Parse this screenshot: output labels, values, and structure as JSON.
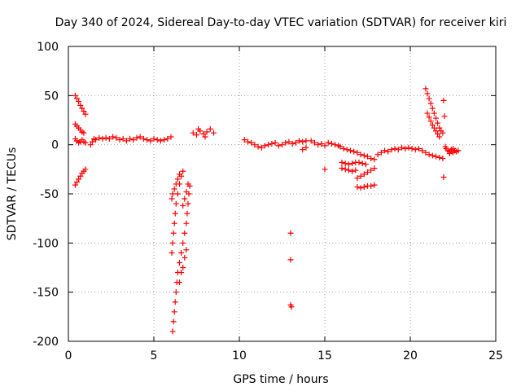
{
  "chart_data": {
    "type": "scatter",
    "title": "Day 340 of 2024, Sidereal Day-to-day VTEC variation (SDTVAR) for receiver kiri",
    "xlabel": "GPS time / hours",
    "ylabel": "SDTVAR / TECUs",
    "xlim": [
      0,
      25
    ],
    "ylim": [
      -200,
      100
    ],
    "xticks": [
      0,
      5,
      10,
      15,
      20,
      25
    ],
    "yticks": [
      -200,
      -150,
      -100,
      -50,
      0,
      50,
      100
    ],
    "grid": true,
    "marker": "+",
    "color": "#ff0000",
    "series": [
      {
        "points": [
          [
            0.4,
            50
          ],
          [
            0.5,
            47
          ],
          [
            0.6,
            44
          ],
          [
            0.7,
            40
          ],
          [
            0.8,
            37
          ],
          [
            0.9,
            34
          ],
          [
            1.0,
            31
          ],
          [
            0.4,
            21
          ],
          [
            0.5,
            19
          ],
          [
            0.6,
            17
          ],
          [
            0.7,
            15
          ],
          [
            0.8,
            13
          ],
          [
            0.9,
            12
          ],
          [
            0.4,
            6
          ],
          [
            0.5,
            4
          ],
          [
            0.6,
            2
          ],
          [
            0.7,
            3
          ],
          [
            0.8,
            5
          ],
          [
            0.9,
            3
          ],
          [
            1.0,
            2
          ],
          [
            0.4,
            -41
          ],
          [
            0.5,
            -38
          ],
          [
            0.6,
            -35
          ],
          [
            0.7,
            -32
          ],
          [
            0.8,
            -29
          ],
          [
            0.9,
            -27
          ],
          [
            1.0,
            -25
          ],
          [
            1.3,
            0
          ],
          [
            1.4,
            3
          ],
          [
            1.5,
            6
          ],
          [
            1.6,
            5
          ],
          [
            1.8,
            7
          ],
          [
            2.0,
            6
          ],
          [
            2.2,
            7
          ],
          [
            2.4,
            6
          ],
          [
            2.6,
            8
          ],
          [
            2.8,
            7
          ],
          [
            3.0,
            5
          ],
          [
            3.2,
            6
          ],
          [
            3.4,
            4
          ],
          [
            3.6,
            6
          ],
          [
            3.8,
            5
          ],
          [
            4.0,
            7
          ],
          [
            4.2,
            8
          ],
          [
            4.4,
            6
          ],
          [
            4.6,
            5
          ],
          [
            4.8,
            4
          ],
          [
            5.0,
            6
          ],
          [
            5.2,
            5
          ],
          [
            5.4,
            4
          ],
          [
            5.6,
            5
          ],
          [
            5.8,
            6
          ],
          [
            6.0,
            8
          ],
          [
            6.05,
            -110
          ],
          [
            6.1,
            -100
          ],
          [
            6.15,
            -90
          ],
          [
            6.2,
            -80
          ],
          [
            6.25,
            -70
          ],
          [
            6.3,
            -60
          ],
          [
            6.4,
            -50
          ],
          [
            6.5,
            -40
          ],
          [
            6.6,
            -32
          ],
          [
            6.7,
            -27
          ],
          [
            6.05,
            -55
          ],
          [
            6.1,
            -50
          ],
          [
            6.2,
            -45
          ],
          [
            6.3,
            -40
          ],
          [
            6.4,
            -35
          ],
          [
            6.5,
            -30
          ],
          [
            6.1,
            -190
          ],
          [
            6.15,
            -180
          ],
          [
            6.2,
            -170
          ],
          [
            6.25,
            -160
          ],
          [
            6.3,
            -150
          ],
          [
            6.35,
            -140
          ],
          [
            6.4,
            -130
          ],
          [
            6.5,
            -120
          ],
          [
            6.6,
            -110
          ],
          [
            6.7,
            -100
          ],
          [
            6.8,
            -90
          ],
          [
            6.9,
            -80
          ],
          [
            6.95,
            -70
          ],
          [
            7.0,
            -60
          ],
          [
            7.05,
            -50
          ],
          [
            7.1,
            -42
          ],
          [
            7.0,
            -40
          ],
          [
            6.7,
            -62
          ],
          [
            6.8,
            -55
          ],
          [
            6.9,
            -48
          ],
          [
            6.5,
            -140
          ],
          [
            6.6,
            -130
          ],
          [
            6.7,
            -125
          ],
          [
            6.8,
            -115
          ],
          [
            6.9,
            -107
          ],
          [
            7.3,
            12
          ],
          [
            7.5,
            10
          ],
          [
            7.7,
            14
          ],
          [
            7.9,
            11
          ],
          [
            8.1,
            13
          ],
          [
            8.3,
            16
          ],
          [
            8.5,
            12
          ],
          [
            7.6,
            16
          ],
          [
            8.0,
            8
          ],
          [
            10.3,
            5
          ],
          [
            10.5,
            3
          ],
          [
            10.7,
            2
          ],
          [
            10.9,
            0
          ],
          [
            11.1,
            -2
          ],
          [
            11.3,
            -3
          ],
          [
            11.5,
            -1
          ],
          [
            11.7,
            0
          ],
          [
            11.9,
            1
          ],
          [
            12.1,
            2
          ],
          [
            12.3,
            -1
          ],
          [
            12.5,
            0
          ],
          [
            12.7,
            2
          ],
          [
            12.9,
            3
          ],
          [
            13.1,
            1
          ],
          [
            13.3,
            2
          ],
          [
            13.5,
            4
          ],
          [
            13.7,
            3
          ],
          [
            13.9,
            4
          ],
          [
            13.7,
            -5
          ],
          [
            13.9,
            -3
          ],
          [
            13.0,
            -90
          ],
          [
            13.0,
            -117
          ],
          [
            13.0,
            -163
          ],
          [
            13.05,
            -165
          ],
          [
            14.2,
            4
          ],
          [
            14.4,
            2
          ],
          [
            14.6,
            0
          ],
          [
            14.8,
            1
          ],
          [
            15.0,
            -1
          ],
          [
            15.2,
            2
          ],
          [
            15.4,
            1
          ],
          [
            15.6,
            0
          ],
          [
            15.8,
            -1
          ],
          [
            15.0,
            -25
          ],
          [
            15.9,
            -2
          ],
          [
            16.1,
            -4
          ],
          [
            16.3,
            -5
          ],
          [
            16.5,
            -6
          ],
          [
            16.7,
            -7
          ],
          [
            16.9,
            -8
          ],
          [
            17.1,
            -10
          ],
          [
            17.3,
            -11
          ],
          [
            17.5,
            -12
          ],
          [
            17.7,
            -14
          ],
          [
            17.9,
            -15
          ],
          [
            16.0,
            -18
          ],
          [
            16.2,
            -19
          ],
          [
            16.4,
            -20
          ],
          [
            16.6,
            -19
          ],
          [
            16.8,
            -18
          ],
          [
            17.0,
            -18
          ],
          [
            17.2,
            -19
          ],
          [
            17.4,
            -20
          ],
          [
            16.0,
            -24
          ],
          [
            16.2,
            -25
          ],
          [
            16.4,
            -26
          ],
          [
            16.6,
            -27
          ],
          [
            16.8,
            -26
          ],
          [
            16.9,
            -34
          ],
          [
            17.1,
            -32
          ],
          [
            17.3,
            -30
          ],
          [
            17.5,
            -28
          ],
          [
            17.7,
            -26
          ],
          [
            17.9,
            -24
          ],
          [
            16.9,
            -43
          ],
          [
            17.1,
            -44
          ],
          [
            17.3,
            -43
          ],
          [
            17.5,
            -42
          ],
          [
            17.7,
            -42
          ],
          [
            17.9,
            -41
          ],
          [
            18.1,
            -10
          ],
          [
            18.3,
            -8
          ],
          [
            18.5,
            -6
          ],
          [
            18.7,
            -7
          ],
          [
            18.9,
            -5
          ],
          [
            19.1,
            -4
          ],
          [
            19.3,
            -5
          ],
          [
            19.5,
            -3
          ],
          [
            19.7,
            -4
          ],
          [
            19.9,
            -3
          ],
          [
            20.1,
            -4
          ],
          [
            20.3,
            -5
          ],
          [
            20.5,
            -4
          ],
          [
            20.7,
            -6
          ],
          [
            20.9,
            -8
          ],
          [
            21.1,
            -10
          ],
          [
            21.3,
            -11
          ],
          [
            21.5,
            -12
          ],
          [
            21.7,
            -13
          ],
          [
            21.9,
            -14
          ],
          [
            20.9,
            57
          ],
          [
            21.0,
            52
          ],
          [
            21.1,
            47
          ],
          [
            21.2,
            42
          ],
          [
            21.3,
            37
          ],
          [
            21.4,
            32
          ],
          [
            21.5,
            27
          ],
          [
            21.6,
            22
          ],
          [
            21.7,
            17
          ],
          [
            21.8,
            14
          ],
          [
            21.9,
            12
          ],
          [
            21.0,
            32
          ],
          [
            21.1,
            28
          ],
          [
            21.2,
            24
          ],
          [
            21.3,
            20
          ],
          [
            21.4,
            17
          ],
          [
            21.5,
            14
          ],
          [
            21.6,
            11
          ],
          [
            21.7,
            8
          ],
          [
            21.95,
            45
          ],
          [
            22.0,
            29
          ],
          [
            21.95,
            -33
          ],
          [
            22.05,
            -2
          ],
          [
            22.1,
            -4
          ],
          [
            22.2,
            -6
          ],
          [
            22.3,
            -7
          ],
          [
            22.4,
            -5
          ],
          [
            22.5,
            -8
          ],
          [
            22.6,
            -6
          ],
          [
            22.7,
            -7
          ],
          [
            22.8,
            -6
          ],
          [
            22.5,
            -4
          ],
          [
            22.3,
            -9
          ]
        ]
      }
    ]
  }
}
